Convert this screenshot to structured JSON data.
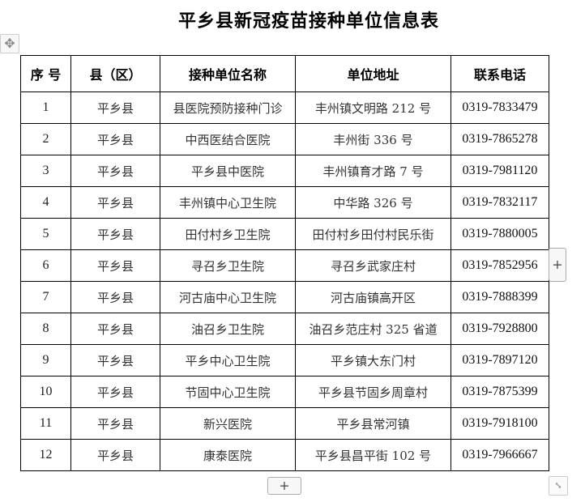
{
  "title": "平乡县新冠疫苗接种单位信息表",
  "controls": {
    "move_icon": "✥",
    "add_row": "+",
    "add_col": "+",
    "resize_icon": "⤡"
  },
  "table": {
    "headers": [
      "序 号",
      "县（区）",
      "接种单位名称",
      "单位地址",
      "联系电话"
    ],
    "rows": [
      [
        "1",
        "平乡县",
        "县医院预防接种门诊",
        "丰州镇文明路 212 号",
        "0319-7833479"
      ],
      [
        "2",
        "平乡县",
        "中西医结合医院",
        "丰州街 336 号",
        "0319-7865278"
      ],
      [
        "3",
        "平乡县",
        "平乡县中医院",
        "丰州镇育才路 7 号",
        "0319-7981120"
      ],
      [
        "4",
        "平乡县",
        "丰州镇中心卫生院",
        "中华路 326 号",
        "0319-7832117"
      ],
      [
        "5",
        "平乡县",
        "田付村乡卫生院",
        "田付村乡田付村民乐街",
        "0319-7880005"
      ],
      [
        "6",
        "平乡县",
        "寻召乡卫生院",
        "寻召乡武家庄村",
        "0319-7852956"
      ],
      [
        "7",
        "平乡县",
        "河古庙中心卫生院",
        "河古庙镇高开区",
        "0319-7888399"
      ],
      [
        "8",
        "平乡县",
        "油召乡卫生院",
        "油召乡范庄村 325 省道",
        "0319-7928800"
      ],
      [
        "9",
        "平乡县",
        "平乡中心卫生院",
        "平乡镇大东门村",
        "0319-7897120"
      ],
      [
        "10",
        "平乡县",
        "节固中心卫生院",
        "平乡县节固乡周章村",
        "0319-7875399"
      ],
      [
        "11",
        "平乡县",
        "新兴医院",
        "平乡县常河镇",
        "0319-7918100"
      ],
      [
        "12",
        "平乡县",
        "康泰医院",
        "平乡县昌平街 102 号",
        "0319-7966667"
      ]
    ]
  }
}
